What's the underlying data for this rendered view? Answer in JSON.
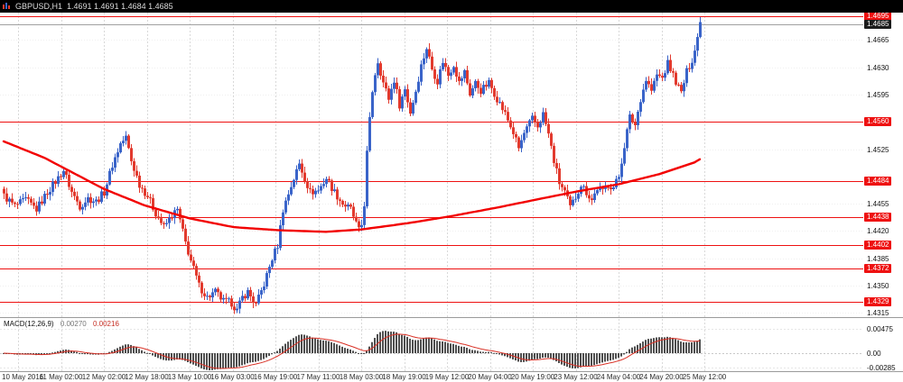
{
  "title_bar": {
    "text": "GBPUSD,H1  1.4691 1.4691 1.4684 1.4685"
  },
  "indicator": {
    "name": "MACD(12,26,9)",
    "macd_value": "0.00270",
    "signal_value": "0.00216"
  },
  "colors": {
    "candle_up": "#3a64c9",
    "candle_down": "#e23a2e",
    "level_line": "#ee1111",
    "bid_line": "#a0a0a0",
    "bid_box": "#1c1c1c",
    "ma_line": "#f20000",
    "grid": "#d9d9d9",
    "grid_faint": "#efefef",
    "macd_bar": "#4f4f4f",
    "macd_signal": "#d93025",
    "separator": "#9a9a9a",
    "title_bg": "#000000",
    "title_text": "#dcdcdc"
  },
  "chart_data": {
    "type": "candlestick",
    "symbol": "GBPUSD",
    "timeframe": "H1",
    "title": "GBPUSD,H1",
    "current_ohlc": {
      "open": 1.4691,
      "high": 1.4691,
      "low": 1.4684,
      "close": 1.4685
    },
    "bid_price": 1.4685,
    "y_axis": {
      "min": 1.4312,
      "max": 1.47,
      "ticks": [
        {
          "text": "1.4695",
          "price": 1.4695,
          "kind": "level"
        },
        {
          "text": "1.4685",
          "price": 1.4685,
          "kind": "bid"
        },
        {
          "text": "1.4665",
          "price": 1.4665,
          "kind": "tick"
        },
        {
          "text": "1.4630",
          "price": 1.463,
          "kind": "tick"
        },
        {
          "text": "1.4595",
          "price": 1.4595,
          "kind": "tick"
        },
        {
          "text": "1.4560",
          "price": 1.456,
          "kind": "level"
        },
        {
          "text": "1.4525",
          "price": 1.4525,
          "kind": "tick"
        },
        {
          "text": "1.4484",
          "price": 1.4484,
          "kind": "level"
        },
        {
          "text": "1.4455",
          "price": 1.4455,
          "kind": "tick"
        },
        {
          "text": "1.4438",
          "price": 1.4438,
          "kind": "level"
        },
        {
          "text": "1.4420",
          "price": 1.442,
          "kind": "tick"
        },
        {
          "text": "1.4402",
          "price": 1.4402,
          "kind": "level"
        },
        {
          "text": "1.4385",
          "price": 1.4385,
          "kind": "tick"
        },
        {
          "text": "1.4372",
          "price": 1.4372,
          "kind": "level"
        },
        {
          "text": "1.4350",
          "price": 1.435,
          "kind": "tick"
        },
        {
          "text": "1.4329",
          "price": 1.4329,
          "kind": "level"
        },
        {
          "text": "1.4315",
          "price": 1.4315,
          "kind": "tick"
        }
      ]
    },
    "x_axis": {
      "labels": [
        "10 May 2016",
        "11 May 02:00",
        "12 May 02:00",
        "12 May 18:00",
        "13 May 10:00",
        "16 May 03:00",
        "16 May 19:00",
        "17 May 11:00",
        "18 May 03:00",
        "18 May 19:00",
        "19 May 12:00",
        "20 May 04:00",
        "20 May 19:00",
        "23 May 12:00",
        "24 May 04:00",
        "24 May 20:00",
        "25 May 12:00"
      ]
    },
    "candle_count": 258,
    "noise_amplitude": 0.0005,
    "wick_extra": 0.0006,
    "close_keypoints": [
      [
        0,
        1.4465
      ],
      [
        4,
        1.4452
      ],
      [
        8,
        1.446
      ],
      [
        12,
        1.4448
      ],
      [
        16,
        1.447
      ],
      [
        20,
        1.4488
      ],
      [
        22,
        1.4498
      ],
      [
        25,
        1.447
      ],
      [
        28,
        1.4452
      ],
      [
        31,
        1.4462
      ],
      [
        34,
        1.4458
      ],
      [
        37,
        1.447
      ],
      [
        40,
        1.4505
      ],
      [
        43,
        1.4532
      ],
      [
        45,
        1.454
      ],
      [
        47,
        1.451
      ],
      [
        50,
        1.448
      ],
      [
        53,
        1.4465
      ],
      [
        56,
        1.4443
      ],
      [
        59,
        1.4425
      ],
      [
        62,
        1.444
      ],
      [
        64,
        1.4447
      ],
      [
        67,
        1.4405
      ],
      [
        69,
        1.4382
      ],
      [
        72,
        1.435
      ],
      [
        75,
        1.4335
      ],
      [
        78,
        1.4342
      ],
      [
        81,
        1.433
      ],
      [
        84,
        1.4328
      ],
      [
        86,
        1.4318
      ],
      [
        88,
        1.4335
      ],
      [
        90,
        1.4342
      ],
      [
        93,
        1.4325
      ],
      [
        96,
        1.4352
      ],
      [
        99,
        1.4385
      ],
      [
        101,
        1.4402
      ],
      [
        103,
        1.4448
      ],
      [
        106,
        1.4478
      ],
      [
        109,
        1.4506
      ],
      [
        111,
        1.4488
      ],
      [
        113,
        1.447
      ],
      [
        116,
        1.4472
      ],
      [
        119,
        1.4488
      ],
      [
        122,
        1.447
      ],
      [
        125,
        1.4455
      ],
      [
        128,
        1.4448
      ],
      [
        131,
        1.442
      ],
      [
        132,
        1.4428
      ],
      [
        133,
        1.4455
      ],
      [
        134,
        1.452
      ],
      [
        135,
        1.4562
      ],
      [
        136,
        1.46
      ],
      [
        137,
        1.4622
      ],
      [
        138,
        1.4638
      ],
      [
        140,
        1.461
      ],
      [
        142,
        1.459
      ],
      [
        144,
        1.4614
      ],
      [
        146,
        1.4582
      ],
      [
        148,
        1.4602
      ],
      [
        150,
        1.4572
      ],
      [
        152,
        1.46
      ],
      [
        154,
        1.4632
      ],
      [
        156,
        1.4655
      ],
      [
        158,
        1.4628
      ],
      [
        160,
        1.4612
      ],
      [
        162,
        1.4638
      ],
      [
        164,
        1.462
      ],
      [
        166,
        1.4634
      ],
      [
        168,
        1.461
      ],
      [
        170,
        1.4624
      ],
      [
        172,
        1.4596
      ],
      [
        174,
        1.461
      ],
      [
        176,
        1.46
      ],
      [
        179,
        1.461
      ],
      [
        182,
        1.459
      ],
      [
        185,
        1.457
      ],
      [
        188,
        1.4546
      ],
      [
        190,
        1.4526
      ],
      [
        192,
        1.4545
      ],
      [
        195,
        1.4564
      ],
      [
        197,
        1.4554
      ],
      [
        199,
        1.457
      ],
      [
        201,
        1.4544
      ],
      [
        203,
        1.451
      ],
      [
        205,
        1.4482
      ],
      [
        207,
        1.447
      ],
      [
        209,
        1.445
      ],
      [
        211,
        1.4464
      ],
      [
        213,
        1.448
      ],
      [
        215,
        1.447
      ],
      [
        217,
        1.446
      ],
      [
        219,
        1.4475
      ],
      [
        221,
        1.447
      ],
      [
        223,
        1.448
      ],
      [
        225,
        1.4476
      ],
      [
        227,
        1.449
      ],
      [
        229,
        1.453
      ],
      [
        231,
        1.4566
      ],
      [
        233,
        1.4556
      ],
      [
        235,
        1.459
      ],
      [
        237,
        1.4614
      ],
      [
        239,
        1.46
      ],
      [
        241,
        1.462
      ],
      [
        243,
        1.4616
      ],
      [
        245,
        1.4635
      ],
      [
        247,
        1.462
      ],
      [
        249,
        1.4604
      ],
      [
        250,
        1.4597
      ],
      [
        252,
        1.4624
      ],
      [
        254,
        1.464
      ],
      [
        255,
        1.4652
      ],
      [
        256,
        1.4668
      ],
      [
        257,
        1.4692
      ]
    ],
    "ma_keypoints": [
      [
        0,
        1.4535
      ],
      [
        15,
        1.4514
      ],
      [
        37,
        1.4474
      ],
      [
        52,
        1.4453
      ],
      [
        69,
        1.4436
      ],
      [
        85,
        1.4425
      ],
      [
        102,
        1.4421
      ],
      [
        119,
        1.4419
      ],
      [
        132,
        1.4422
      ],
      [
        149,
        1.443
      ],
      [
        165,
        1.4439
      ],
      [
        182,
        1.445
      ],
      [
        199,
        1.4462
      ],
      [
        212,
        1.4471
      ],
      [
        227,
        1.448
      ],
      [
        242,
        1.4493
      ],
      [
        255,
        1.4508
      ],
      [
        257,
        1.4512
      ]
    ],
    "macd": {
      "fast": 12,
      "slow": 26,
      "signal": 9,
      "current_macd": 0.0027,
      "current_signal": 0.00216,
      "y_ticks": [
        {
          "text": "0.00475",
          "value": 0.00475
        },
        {
          "text": "0.00",
          "value": 0
        },
        {
          "text": "-0.00285",
          "value": -0.00285
        }
      ]
    }
  }
}
